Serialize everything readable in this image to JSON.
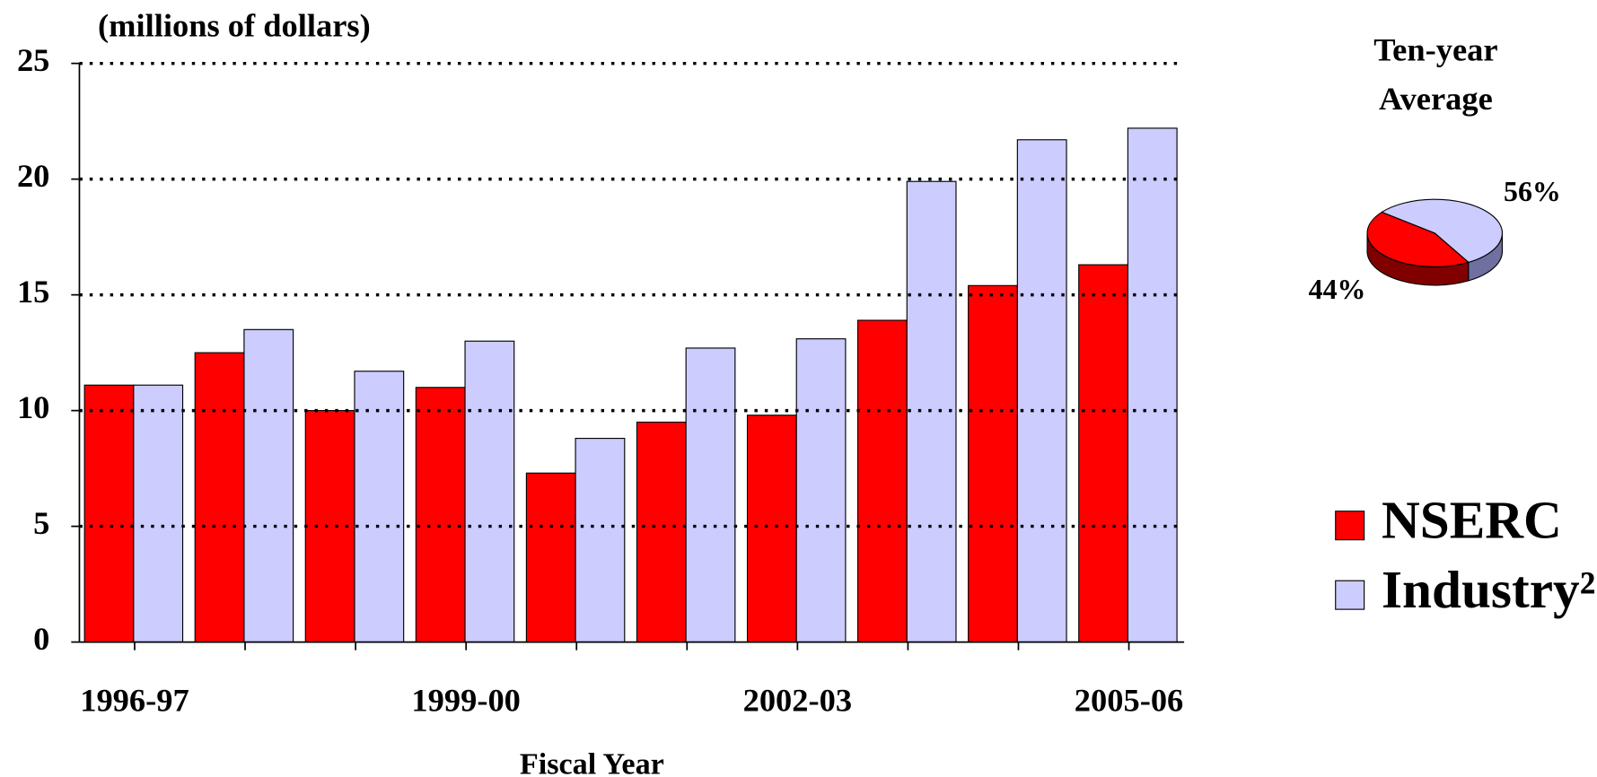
{
  "chart_data": [
    {
      "type": "bar",
      "y_label": "(millions of dollars)",
      "x_label": "Fiscal Year",
      "categories": [
        "1996-97",
        null,
        null,
        "1999-00",
        null,
        null,
        "2002-03",
        null,
        null,
        "2005-06"
      ],
      "series": [
        {
          "name": "NSERC",
          "color": "#ff0000",
          "values": [
            11.1,
            12.5,
            10,
            11,
            7.3,
            9.5,
            9.8,
            13.9,
            15.4,
            16.3
          ]
        },
        {
          "name": "Industry²",
          "color": "#ccccff",
          "values": [
            11.1,
            13.5,
            11.7,
            13,
            8.8,
            12.7,
            13.1,
            19.9,
            21.7,
            22.2
          ]
        }
      ],
      "ylim": [
        0,
        25
      ],
      "yticks": [
        0,
        5,
        10,
        15,
        20,
        25
      ],
      "grid": true,
      "legend": "right"
    },
    {
      "type": "pie",
      "title": "Ten-year Average",
      "values": [
        44,
        56
      ],
      "value_labels": [
        "44%",
        "56%"
      ],
      "colors": [
        "#ff0000",
        "#ccccff"
      ],
      "side_colors": [
        "#800000",
        "#7070a0"
      ]
    }
  ]
}
